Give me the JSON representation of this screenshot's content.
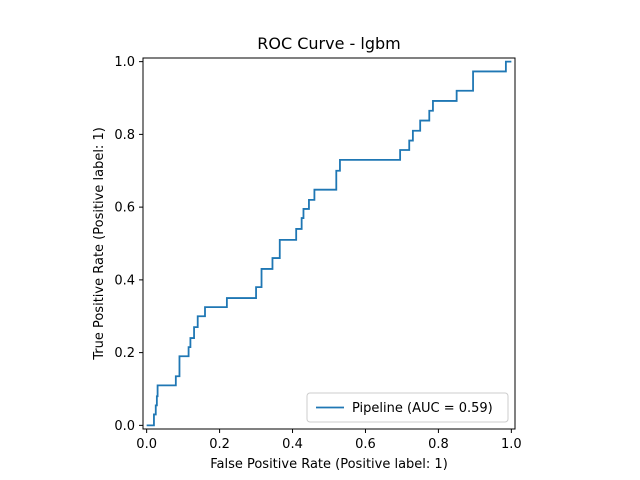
{
  "chart_data": {
    "type": "line",
    "title": "ROC Curve - lgbm",
    "xlabel": "False Positive Rate (Positive label: 1)",
    "ylabel": "True Positive Rate (Positive label: 1)",
    "xlim": [
      -0.01,
      1.01
    ],
    "ylim": [
      -0.01,
      1.01
    ],
    "xticks": [
      "0.0",
      "0.2",
      "0.4",
      "0.6",
      "0.8",
      "1.0"
    ],
    "yticks": [
      "0.0",
      "0.2",
      "0.4",
      "0.6",
      "0.8",
      "1.0"
    ],
    "grid": false,
    "legend_position": "lower-right",
    "series": [
      {
        "name": "Pipeline (AUC = 0.59)",
        "color": "#1f77b4",
        "points": [
          [
            0.0,
            0.0
          ],
          [
            0.02,
            0.0
          ],
          [
            0.02,
            0.03
          ],
          [
            0.025,
            0.03
          ],
          [
            0.025,
            0.055
          ],
          [
            0.028,
            0.055
          ],
          [
            0.028,
            0.08
          ],
          [
            0.03,
            0.08
          ],
          [
            0.03,
            0.11
          ],
          [
            0.08,
            0.11
          ],
          [
            0.08,
            0.135
          ],
          [
            0.09,
            0.135
          ],
          [
            0.09,
            0.19
          ],
          [
            0.115,
            0.19
          ],
          [
            0.115,
            0.215
          ],
          [
            0.12,
            0.215
          ],
          [
            0.12,
            0.24
          ],
          [
            0.13,
            0.24
          ],
          [
            0.13,
            0.27
          ],
          [
            0.14,
            0.27
          ],
          [
            0.14,
            0.3
          ],
          [
            0.16,
            0.3
          ],
          [
            0.16,
            0.325
          ],
          [
            0.22,
            0.325
          ],
          [
            0.22,
            0.35
          ],
          [
            0.3,
            0.35
          ],
          [
            0.3,
            0.38
          ],
          [
            0.315,
            0.38
          ],
          [
            0.315,
            0.43
          ],
          [
            0.345,
            0.43
          ],
          [
            0.345,
            0.46
          ],
          [
            0.365,
            0.46
          ],
          [
            0.365,
            0.51
          ],
          [
            0.41,
            0.51
          ],
          [
            0.41,
            0.54
          ],
          [
            0.425,
            0.54
          ],
          [
            0.425,
            0.57
          ],
          [
            0.43,
            0.57
          ],
          [
            0.43,
            0.595
          ],
          [
            0.445,
            0.595
          ],
          [
            0.445,
            0.62
          ],
          [
            0.46,
            0.62
          ],
          [
            0.46,
            0.648
          ],
          [
            0.52,
            0.648
          ],
          [
            0.52,
            0.7
          ],
          [
            0.53,
            0.7
          ],
          [
            0.53,
            0.73
          ],
          [
            0.695,
            0.73
          ],
          [
            0.695,
            0.757
          ],
          [
            0.72,
            0.757
          ],
          [
            0.72,
            0.783
          ],
          [
            0.73,
            0.783
          ],
          [
            0.73,
            0.81
          ],
          [
            0.75,
            0.81
          ],
          [
            0.75,
            0.838
          ],
          [
            0.775,
            0.838
          ],
          [
            0.775,
            0.865
          ],
          [
            0.785,
            0.865
          ],
          [
            0.785,
            0.892
          ],
          [
            0.85,
            0.892
          ],
          [
            0.85,
            0.92
          ],
          [
            0.895,
            0.92
          ],
          [
            0.895,
            0.973
          ],
          [
            0.985,
            0.973
          ],
          [
            0.985,
            1.0
          ],
          [
            1.0,
            1.0
          ]
        ]
      }
    ]
  }
}
